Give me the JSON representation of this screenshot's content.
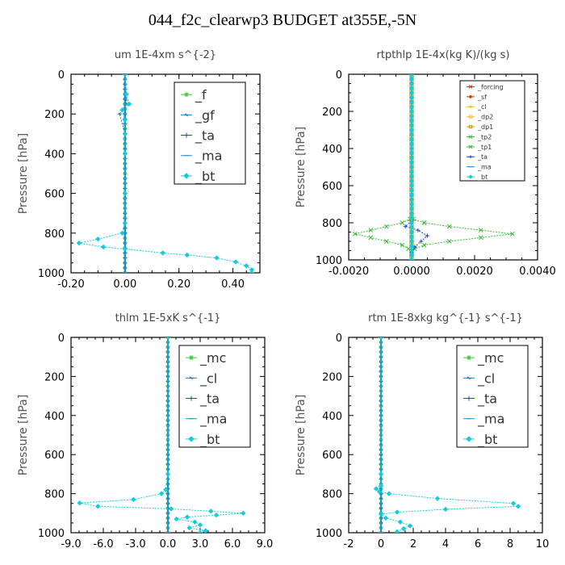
{
  "title": "044_f2c_clearwp3  BUDGET at355E,-5N",
  "colors": {
    "axis": "#000000",
    "grid_text": "#000000",
    "panel_title": "#444444",
    "ylabel": "#555555"
  },
  "chart_data": [
    {
      "type": "line",
      "title": "um   1E-4xm s^{-2}",
      "ylabel": "Pressure [hPa]",
      "xlim": [
        -0.2,
        0.5
      ],
      "ylim": [
        1000,
        0
      ],
      "y_inverted": true,
      "xticks": [
        -0.2,
        0.0,
        0.2,
        0.4
      ],
      "xtick_labels": [
        "-0.20",
        "0.00",
        "0.20",
        "0.40"
      ],
      "yticks": [
        0,
        200,
        400,
        600,
        800,
        1000
      ],
      "ytick_labels": [
        "0",
        "200",
        "400",
        "600",
        "800",
        "1000"
      ],
      "legend": {
        "position": "top-right",
        "size": "large"
      },
      "series": [
        {
          "name": "_f",
          "color": "#33cc33",
          "marker": "star",
          "values": [
            [
              0,
              0
            ],
            [
              0,
              100
            ],
            [
              0,
              200
            ],
            [
              0,
              300
            ],
            [
              0,
              400
            ],
            [
              0,
              500
            ],
            [
              0,
              600
            ],
            [
              0,
              700
            ],
            [
              0,
              800
            ],
            [
              0,
              900
            ],
            [
              0,
              1000
            ]
          ]
        },
        {
          "name": "_gf",
          "color": "#1f77b4",
          "marker": "tick",
          "values": [
            [
              0.0,
              0
            ],
            [
              0.005,
              150
            ],
            [
              -0.02,
              200
            ],
            [
              0.0,
              300
            ],
            [
              0,
              400
            ],
            [
              0,
              600
            ],
            [
              0,
              800
            ],
            [
              0,
              1000
            ]
          ]
        },
        {
          "name": "_ta",
          "color": "#1f3fd0",
          "marker": "plus",
          "values": [
            [
              0,
              0
            ],
            [
              0,
              1000
            ]
          ]
        },
        {
          "name": "_ma",
          "color": "#1f8fd0",
          "marker": "dash",
          "values": [
            [
              0,
              0
            ],
            [
              0,
              1000
            ]
          ]
        },
        {
          "name": "_bt",
          "color": "#11ccdd",
          "marker": "diamond",
          "values": [
            [
              0,
              0
            ],
            [
              0.005,
              100
            ],
            [
              0.015,
              150
            ],
            [
              -0.01,
              180
            ],
            [
              0.0,
              230
            ],
            [
              0.0,
              300
            ],
            [
              0,
              400
            ],
            [
              0,
              600
            ],
            [
              0,
              750
            ],
            [
              -0.01,
              800
            ],
            [
              -0.1,
              830
            ],
            [
              -0.17,
              850
            ],
            [
              -0.08,
              870
            ],
            [
              0.0,
              880
            ],
            [
              0.14,
              900
            ],
            [
              0.23,
              910
            ],
            [
              0.34,
              925
            ],
            [
              0.41,
              945
            ],
            [
              0.45,
              965
            ],
            [
              0.47,
              985
            ],
            [
              0.47,
              1000
            ]
          ]
        }
      ]
    },
    {
      "type": "line",
      "title": "rtpthlp   1E-4x(kg K)/(kg s)",
      "ylabel": "Pressure [hPa]",
      "xlim": [
        -0.002,
        0.004
      ],
      "ylim": [
        1000,
        0
      ],
      "y_inverted": true,
      "xticks": [
        -0.002,
        0.0,
        0.002,
        0.004
      ],
      "xtick_labels": [
        "-0.0020",
        "0.0000",
        "0.0020",
        "0.0040"
      ],
      "yticks": [
        0,
        200,
        400,
        600,
        800,
        1000
      ],
      "ytick_labels": [
        "0",
        "200",
        "400",
        "600",
        "800",
        "1000"
      ],
      "legend": {
        "position": "top-right",
        "size": "small"
      },
      "series": [
        {
          "name": "_forcing",
          "color": "#dd2222",
          "marker": "x",
          "values": [
            [
              0,
              0
            ],
            [
              0,
              1000
            ]
          ]
        },
        {
          "name": "_sf",
          "color": "#cc3300",
          "marker": "star",
          "values": [
            [
              0,
              0
            ],
            [
              0,
              1000
            ]
          ]
        },
        {
          "name": "_cl",
          "color": "#e6b800",
          "marker": "plus",
          "values": [
            [
              0,
              0
            ],
            [
              0,
              1000
            ]
          ]
        },
        {
          "name": "_dp2",
          "color": "#f0c040",
          "marker": "square",
          "values": [
            [
              0,
              0
            ],
            [
              0,
              1000
            ]
          ]
        },
        {
          "name": "_dp1",
          "color": "#cc9900",
          "marker": "square",
          "values": [
            [
              0,
              0
            ],
            [
              0,
              1000
            ]
          ]
        },
        {
          "name": "_tp2",
          "color": "#33bb33",
          "marker": "x",
          "values": [
            [
              0,
              0
            ],
            [
              0,
              760
            ],
            [
              5e-05,
              780
            ],
            [
              0.0004,
              800
            ],
            [
              0.0012,
              820
            ],
            [
              0.0022,
              840
            ],
            [
              0.0032,
              860
            ],
            [
              0.0022,
              880
            ],
            [
              0.0012,
              900
            ],
            [
              0.0004,
              920
            ],
            [
              0.0001,
              940
            ],
            [
              0,
              960
            ],
            [
              0,
              1000
            ]
          ]
        },
        {
          "name": "_tp1",
          "color": "#33bb33",
          "marker": "x",
          "values": [
            [
              0,
              0
            ],
            [
              0,
              760
            ],
            [
              -5e-05,
              780
            ],
            [
              -0.0003,
              800
            ],
            [
              -0.0008,
              820
            ],
            [
              -0.0013,
              840
            ],
            [
              -0.0018,
              860
            ],
            [
              -0.0013,
              880
            ],
            [
              -0.0008,
              900
            ],
            [
              -0.0003,
              920
            ],
            [
              -0.0001,
              940
            ],
            [
              0,
              960
            ],
            [
              0,
              1000
            ]
          ]
        },
        {
          "name": "_ta",
          "color": "#1f3fd0",
          "marker": "plus",
          "values": [
            [
              0,
              0
            ],
            [
              0,
              790
            ],
            [
              -0.0002,
              820
            ],
            [
              0.0002,
              840
            ],
            [
              0.0005,
              870
            ],
            [
              0.0003,
              900
            ],
            [
              0.0001,
              930
            ],
            [
              0,
              960
            ],
            [
              0,
              1000
            ]
          ]
        },
        {
          "name": "_ma",
          "color": "#1f8fd0",
          "marker": "dash",
          "values": [
            [
              0,
              0
            ],
            [
              0,
              1000
            ]
          ]
        },
        {
          "name": "_bt",
          "color": "#11ccdd",
          "marker": "diamond",
          "values": [
            [
              0,
              0
            ],
            [
              0,
              1000
            ]
          ]
        }
      ]
    },
    {
      "type": "line",
      "title": "thlm   1E-5xK s^{-1}",
      "ylabel": "Pressure [hPa]",
      "xlim": [
        -9.0,
        9.0
      ],
      "ylim": [
        1000,
        0
      ],
      "y_inverted": true,
      "xticks": [
        -9,
        -6,
        -3,
        0,
        3,
        6,
        9
      ],
      "xtick_labels": [
        "-9.0",
        "-6.0",
        "-3.0",
        "0.0",
        "3.0",
        "6.0",
        "9.0"
      ],
      "yticks": [
        0,
        200,
        400,
        600,
        800,
        1000
      ],
      "ytick_labels": [
        "0",
        "200",
        "400",
        "600",
        "800",
        "1000"
      ],
      "legend": {
        "position": "top-right",
        "size": "large"
      },
      "series": [
        {
          "name": "_mc",
          "color": "#33cc33",
          "marker": "star",
          "values": [
            [
              0,
              0
            ],
            [
              0,
              1000
            ]
          ]
        },
        {
          "name": "_cl",
          "color": "#1f77b4",
          "marker": "tick",
          "values": [
            [
              0,
              0
            ],
            [
              0,
              1000
            ]
          ]
        },
        {
          "name": "_ta",
          "color": "#1f3fd0",
          "marker": "plus",
          "values": [
            [
              0,
              0
            ],
            [
              0,
              1000
            ]
          ]
        },
        {
          "name": "_ma",
          "color": "#1f8fd0",
          "marker": "dash",
          "values": [
            [
              0,
              0
            ],
            [
              0,
              1000
            ]
          ]
        },
        {
          "name": "_bt",
          "color": "#11ccdd",
          "marker": "diamond",
          "values": [
            [
              0,
              0
            ],
            [
              0,
              700
            ],
            [
              -0.2,
              780
            ],
            [
              -0.6,
              800
            ],
            [
              -3.2,
              830
            ],
            [
              -8.2,
              848
            ],
            [
              -6.5,
              865
            ],
            [
              0.3,
              878
            ],
            [
              4.0,
              890
            ],
            [
              7.0,
              900
            ],
            [
              4.5,
              910
            ],
            [
              1.8,
              920
            ],
            [
              0.8,
              930
            ],
            [
              2.5,
              945
            ],
            [
              3.0,
              960
            ],
            [
              2.0,
              975
            ],
            [
              3.5,
              990
            ],
            [
              3.0,
              1000
            ]
          ]
        }
      ]
    },
    {
      "type": "line",
      "title": "rtm   1E-8xkg kg^{-1} s^{-1}",
      "ylabel": "Pressure [hPa]",
      "xlim": [
        -2,
        10
      ],
      "ylim": [
        1000,
        0
      ],
      "y_inverted": true,
      "xticks": [
        -2,
        0,
        2,
        4,
        6,
        8,
        10
      ],
      "xtick_labels": [
        "-2",
        "0",
        "2",
        "4",
        "6",
        "8",
        "10"
      ],
      "yticks": [
        0,
        200,
        400,
        600,
        800,
        1000
      ],
      "ytick_labels": [
        "0",
        "200",
        "400",
        "600",
        "800",
        "1000"
      ],
      "legend": {
        "position": "top-right",
        "size": "large"
      },
      "series": [
        {
          "name": "_mc",
          "color": "#33cc33",
          "marker": "star",
          "values": [
            [
              0,
              0
            ],
            [
              0,
              1000
            ]
          ]
        },
        {
          "name": "_cl",
          "color": "#1f77b4",
          "marker": "tick",
          "values": [
            [
              0,
              0
            ],
            [
              0,
              1000
            ]
          ]
        },
        {
          "name": "_ta",
          "color": "#1f3fd0",
          "marker": "plus",
          "values": [
            [
              0,
              0
            ],
            [
              0,
              1000
            ]
          ]
        },
        {
          "name": "_ma",
          "color": "#1f8fd0",
          "marker": "dash",
          "values": [
            [
              0,
              0
            ],
            [
              0,
              1000
            ]
          ]
        },
        {
          "name": "_bt",
          "color": "#11ccdd",
          "marker": "diamond",
          "values": [
            [
              0,
              0
            ],
            [
              0,
              700
            ],
            [
              0.0,
              760
            ],
            [
              -0.3,
              775
            ],
            [
              -0.1,
              790
            ],
            [
              0.5,
              800
            ],
            [
              3.5,
              825
            ],
            [
              8.2,
              850
            ],
            [
              8.5,
              865
            ],
            [
              4.0,
              880
            ],
            [
              1.0,
              895
            ],
            [
              0.0,
              905
            ],
            [
              0.3,
              925
            ],
            [
              1.2,
              945
            ],
            [
              1.8,
              965
            ],
            [
              1.4,
              980
            ],
            [
              1.0,
              995
            ],
            [
              1.0,
              1000
            ]
          ]
        }
      ]
    }
  ]
}
